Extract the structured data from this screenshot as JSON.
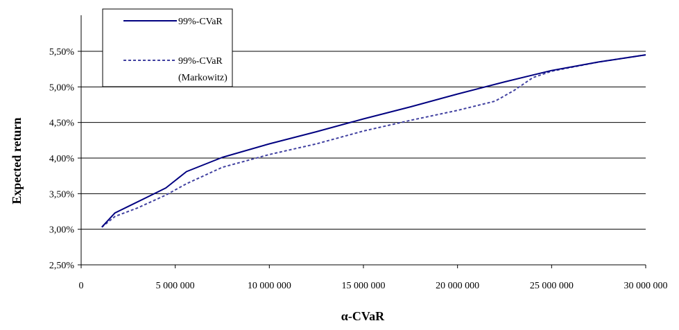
{
  "chart_data": {
    "type": "line",
    "title": "",
    "xlabel": "α-CVaR",
    "ylabel": "Expected return",
    "xlim": [
      0,
      30000000
    ],
    "ylim": [
      0.025,
      0.055
    ],
    "grid": "horizontal",
    "legend_position": "top-left",
    "x_ticks": [
      0,
      5000000,
      10000000,
      15000000,
      20000000,
      25000000,
      30000000
    ],
    "x_tick_labels": [
      "0",
      "5 000 000",
      "10 000 000",
      "15 000 000",
      "20 000 000",
      "25 000 000",
      "30 000 000"
    ],
    "y_ticks": [
      0.025,
      0.03,
      0.035,
      0.04,
      0.045,
      0.05,
      0.055
    ],
    "y_tick_labels": [
      "2,50%",
      "3,00%",
      "3,50%",
      "4,00%",
      "4,50%",
      "5,00%",
      "5,50%"
    ],
    "series": [
      {
        "name": "99%-CVaR",
        "style": "solid",
        "color": "#000080",
        "points": [
          [
            1100000,
            0.0303
          ],
          [
            1800000,
            0.0323
          ],
          [
            2500000,
            0.0332
          ],
          [
            3500000,
            0.0345
          ],
          [
            4500000,
            0.0358
          ],
          [
            5600000,
            0.0381
          ],
          [
            7500000,
            0.0401
          ],
          [
            10000000,
            0.042
          ],
          [
            12500000,
            0.0437
          ],
          [
            15000000,
            0.0455
          ],
          [
            17500000,
            0.0472
          ],
          [
            20000000,
            0.049
          ],
          [
            22500000,
            0.0507
          ],
          [
            25000000,
            0.0523
          ],
          [
            27500000,
            0.0535
          ],
          [
            30000000,
            0.0545
          ]
        ]
      },
      {
        "name": "99%-CVaR\n(Markowitz)",
        "style": "dashed",
        "color": "#4040a0",
        "points": [
          [
            1100000,
            0.0303
          ],
          [
            1800000,
            0.0318
          ],
          [
            3000000,
            0.033
          ],
          [
            4500000,
            0.0348
          ],
          [
            5600000,
            0.0364
          ],
          [
            7500000,
            0.0387
          ],
          [
            10000000,
            0.0405
          ],
          [
            12500000,
            0.042
          ],
          [
            15000000,
            0.0438
          ],
          [
            17500000,
            0.0453
          ],
          [
            20000000,
            0.0467
          ],
          [
            22000000,
            0.048
          ],
          [
            23000000,
            0.0495
          ],
          [
            24000000,
            0.0513
          ],
          [
            25000000,
            0.0522
          ],
          [
            27500000,
            0.0535
          ],
          [
            30000000,
            0.0545
          ]
        ]
      }
    ],
    "legend": [
      {
        "label": "99%-CVaR",
        "style": "solid"
      },
      {
        "label": "99%-CVaR",
        "label2": "(Markowitz)",
        "style": "dashed"
      }
    ]
  }
}
